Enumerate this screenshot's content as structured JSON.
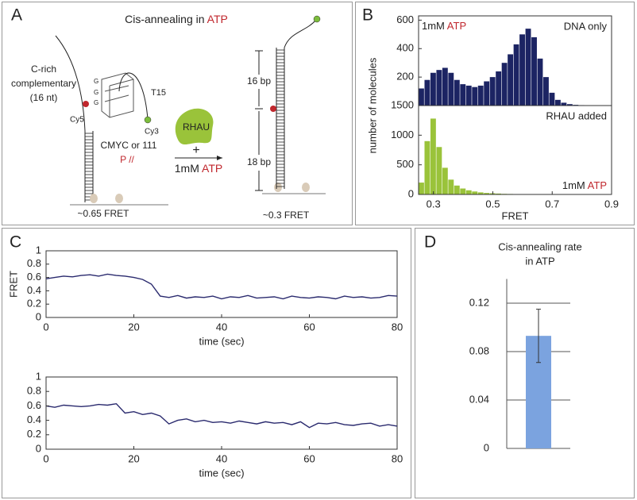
{
  "panel_labels": [
    "A",
    "B",
    "C",
    "D"
  ],
  "diagram": {
    "title": {
      "text": "Cis-annealing in",
      "highlight": "ATP"
    },
    "c_rich": [
      "C-rich",
      "complementary",
      "(16 nt)"
    ],
    "cy5": "Cy5",
    "cy3": "Cy3",
    "t15": "T15",
    "g_letters": [
      "G",
      "G",
      "G"
    ],
    "construct": "CMYC or 111",
    "p_label": "P //",
    "protein": "RHAU",
    "plus": "+",
    "condition": {
      "text": "1mM",
      "highlight": "ATP"
    },
    "len1": "16 bp",
    "len2": "18 bp",
    "fret_before": "~0.65 FRET",
    "fret_after": "~0.3 FRET"
  },
  "chart_data": [
    {
      "type": "histogram",
      "color": "#1c2463",
      "label": {
        "text": "1mM",
        "highlight": "ATP"
      },
      "subtitle": "DNA only",
      "ylabel": "number of molecules",
      "bins": [
        0.25,
        0.27,
        0.29,
        0.31,
        0.33,
        0.35,
        0.37,
        0.39,
        0.41,
        0.43,
        0.45,
        0.47,
        0.49,
        0.51,
        0.53,
        0.55,
        0.57,
        0.59,
        0.61,
        0.63,
        0.65,
        0.67,
        0.69,
        0.71,
        0.73,
        0.75,
        0.77,
        0.79,
        0.81,
        0.83,
        0.85,
        0.87
      ],
      "values": [
        120,
        180,
        230,
        250,
        265,
        230,
        180,
        150,
        140,
        130,
        140,
        170,
        200,
        240,
        300,
        360,
        430,
        500,
        540,
        480,
        330,
        200,
        90,
        40,
        20,
        10,
        5,
        3,
        2,
        1,
        1
      ],
      "xlim": [
        0.25,
        0.9
      ],
      "ylim": [
        0,
        630
      ],
      "yticks": [
        200,
        400,
        600
      ]
    },
    {
      "type": "histogram",
      "color": "#9ac33a",
      "label": {
        "text": "1mM",
        "highlight": "ATP"
      },
      "subtitle": "RHAU added",
      "xlabel": "FRET",
      "bins": [
        0.25,
        0.27,
        0.29,
        0.31,
        0.33,
        0.35,
        0.37,
        0.39,
        0.41,
        0.43,
        0.45,
        0.47,
        0.49,
        0.51,
        0.53,
        0.55,
        0.57,
        0.59,
        0.61,
        0.63,
        0.65,
        0.67,
        0.69,
        0.71,
        0.73,
        0.75,
        0.77,
        0.79,
        0.81,
        0.83,
        0.85,
        0.87
      ],
      "values": [
        200,
        900,
        1280,
        800,
        450,
        250,
        150,
        100,
        70,
        50,
        35,
        25,
        20,
        15,
        10,
        8,
        5,
        4,
        3,
        2,
        2,
        1,
        1,
        0,
        0,
        0,
        0,
        0,
        0,
        0,
        0
      ],
      "xlim": [
        0.25,
        0.9
      ],
      "ylim": [
        0,
        1500
      ],
      "xticks": [
        0.3,
        0.5,
        0.7,
        0.9
      ],
      "yticks": [
        0,
        500,
        1000,
        1500
      ]
    },
    {
      "type": "line",
      "color": "#2a2a6e",
      "ylabel": "FRET",
      "xlabel": "time (sec)",
      "x": [
        0,
        2,
        4,
        6,
        8,
        10,
        12,
        14,
        16,
        18,
        20,
        22,
        24,
        26,
        28,
        30,
        32,
        34,
        36,
        38,
        40,
        42,
        44,
        46,
        48,
        50,
        52,
        54,
        56,
        58,
        60,
        62,
        64,
        66,
        68,
        70,
        72,
        74,
        76,
        78,
        80
      ],
      "values": [
        0.58,
        0.6,
        0.62,
        0.61,
        0.63,
        0.64,
        0.62,
        0.65,
        0.63,
        0.62,
        0.6,
        0.57,
        0.5,
        0.32,
        0.3,
        0.33,
        0.29,
        0.31,
        0.3,
        0.32,
        0.28,
        0.31,
        0.3,
        0.33,
        0.29,
        0.3,
        0.31,
        0.28,
        0.32,
        0.3,
        0.29,
        0.31,
        0.3,
        0.28,
        0.32,
        0.3,
        0.31,
        0.29,
        0.3,
        0.33,
        0.32
      ],
      "xlim": [
        0,
        80
      ],
      "ylim": [
        0,
        1
      ],
      "xticks": [
        0,
        20,
        40,
        60,
        80
      ],
      "yticks": [
        0,
        0.2,
        0.4,
        0.6,
        0.8,
        1
      ]
    },
    {
      "type": "line",
      "color": "#2a2a6e",
      "xlabel": "time (sec)",
      "x": [
        0,
        2,
        4,
        6,
        8,
        10,
        12,
        14,
        16,
        18,
        20,
        22,
        24,
        26,
        28,
        30,
        32,
        34,
        36,
        38,
        40,
        42,
        44,
        46,
        48,
        50,
        52,
        54,
        56,
        58,
        60,
        62,
        64,
        66,
        68,
        70,
        72,
        74,
        76,
        78,
        80
      ],
      "values": [
        0.6,
        0.58,
        0.61,
        0.6,
        0.59,
        0.6,
        0.62,
        0.61,
        0.63,
        0.5,
        0.52,
        0.48,
        0.5,
        0.46,
        0.35,
        0.4,
        0.42,
        0.38,
        0.4,
        0.37,
        0.38,
        0.36,
        0.39,
        0.37,
        0.35,
        0.38,
        0.36,
        0.37,
        0.34,
        0.38,
        0.3,
        0.36,
        0.35,
        0.37,
        0.34,
        0.33,
        0.35,
        0.36,
        0.32,
        0.34,
        0.32
      ],
      "xlim": [
        0,
        80
      ],
      "ylim": [
        0,
        1
      ],
      "xticks": [
        0,
        20,
        40,
        60,
        80
      ],
      "yticks": [
        0,
        0.2,
        0.4,
        0.6,
        0.8,
        1
      ]
    },
    {
      "type": "bar",
      "color": "#7ba3df",
      "title": [
        "Cis-annealing rate",
        "in ATP"
      ],
      "categories": [
        null
      ],
      "values": [
        0.093
      ],
      "errors": [
        0.022
      ],
      "ylim": [
        0,
        0.14
      ],
      "yticks": [
        0,
        0.04,
        0.08,
        0.12
      ],
      "grid": true
    }
  ]
}
